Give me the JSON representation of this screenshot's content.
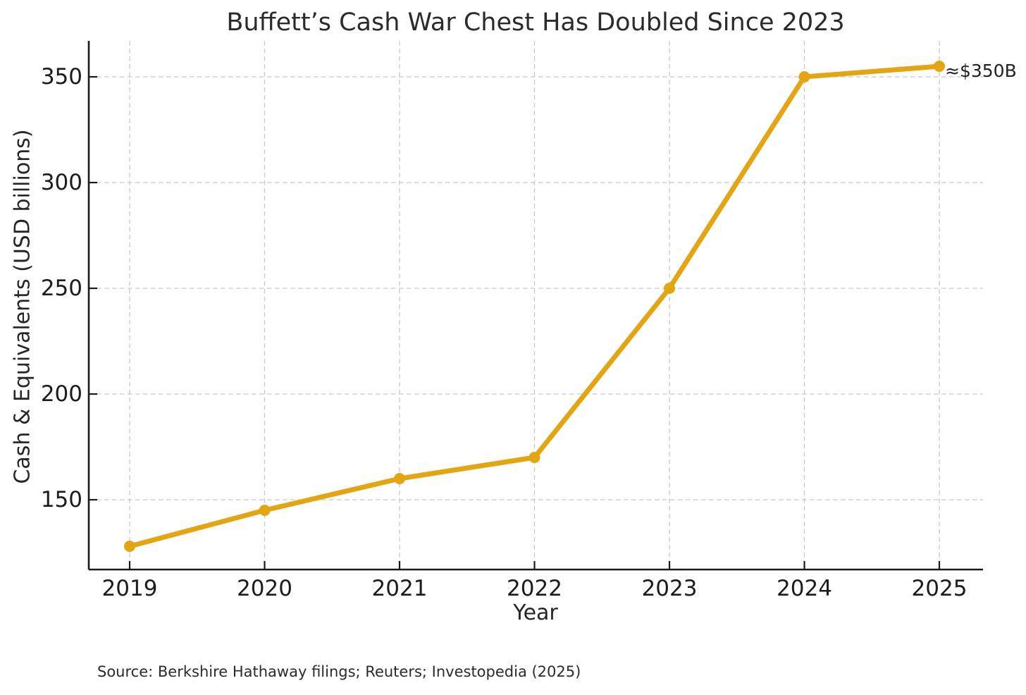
{
  "chart_data": {
    "type": "line",
    "title": "Buffett’s Cash War Chest Has Doubled Since 2023",
    "xlabel": "Year",
    "ylabel": "Cash & Equivalents (USD billions)",
    "categories": [
      "2019",
      "2020",
      "2021",
      "2022",
      "2023",
      "2024",
      "2025"
    ],
    "series": [
      {
        "name": "Cash & Equivalents",
        "values": [
          128,
          145,
          160,
          170,
          250,
          350,
          355
        ]
      }
    ],
    "y_ticks": [
      150,
      200,
      250,
      300,
      350
    ],
    "ylim": [
      117,
      367
    ],
    "grid": true,
    "grid_style": "dashed",
    "legend": false,
    "line_color": "#E3A512",
    "marker": "circle",
    "annotation": {
      "text": "≈$350B",
      "x": "2025",
      "y": 355
    }
  },
  "source_note": "Source: Berkshire Hathaway filings; Reuters; Investopedia (2025)",
  "colors": {
    "line": "#E3A512",
    "grid": "#c8c8c8",
    "axis": "#1a1a1a",
    "text": "#262626",
    "background": "#ffffff"
  }
}
